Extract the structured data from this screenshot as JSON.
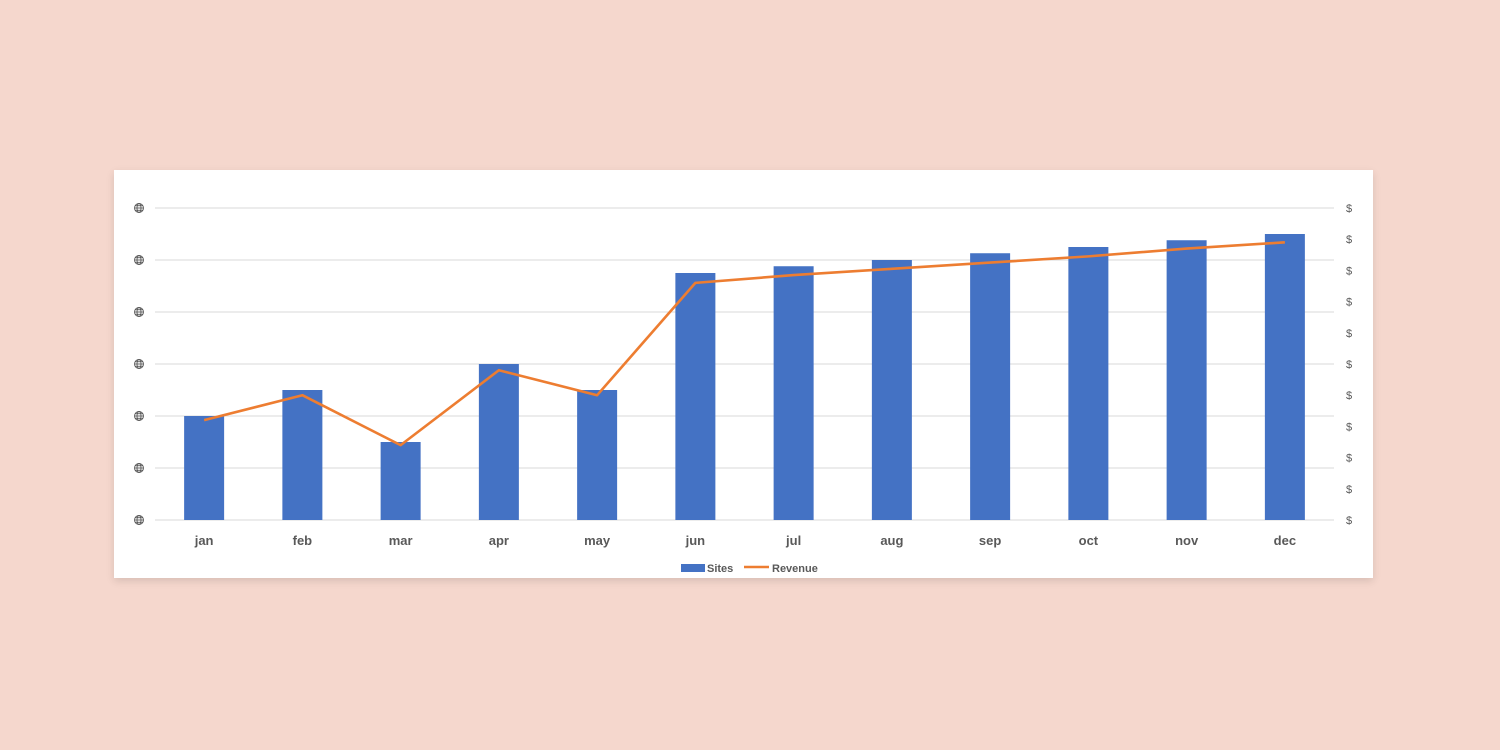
{
  "chart_data": {
    "type": "bar",
    "categories": [
      "jan",
      "feb",
      "mar",
      "apr",
      "may",
      "jun",
      "jul",
      "aug",
      "sep",
      "oct",
      "nov",
      "dec"
    ],
    "series": [
      {
        "name": "Sites",
        "kind": "bar",
        "axis": "left",
        "values": [
          2,
          2.5,
          1.5,
          3,
          2.5,
          4.75,
          4.88,
          5,
          5.13,
          5.25,
          5.38,
          5.5
        ]
      },
      {
        "name": "Revenue",
        "kind": "line",
        "axis": "right",
        "values": [
          3.2,
          4,
          2.4,
          4.8,
          4,
          7.6,
          7.85,
          8.05,
          8.25,
          8.45,
          8.7,
          8.9
        ]
      }
    ],
    "y_left": {
      "ticks": 7,
      "label_icon": "globe-icon",
      "range": [
        0,
        6
      ]
    },
    "y_right": {
      "ticks": 11,
      "tick_label": "$",
      "range": [
        0,
        10
      ]
    },
    "grid": true,
    "legend": "bottom",
    "colors": {
      "bar": "#4472c4",
      "line": "#ed7d31",
      "grid": "#d9d9d9",
      "text": "#595959"
    }
  }
}
